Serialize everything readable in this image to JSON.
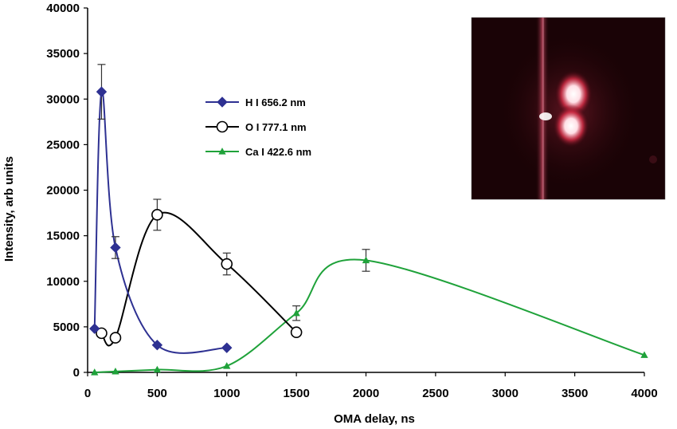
{
  "chart_data": {
    "type": "line",
    "xlabel": "OMA delay, ns",
    "ylabel": "Intensity, arb units",
    "xlim": [
      0,
      4000
    ],
    "ylim": [
      0,
      40000
    ],
    "xticks": [
      "0",
      "500",
      "1000",
      "1500",
      "2000",
      "2500",
      "3000",
      "3500",
      "4000"
    ],
    "yticks": [
      "0",
      "5000",
      "10000",
      "15000",
      "20000",
      "25000",
      "30000",
      "35000",
      "40000"
    ],
    "legend_position": "center-left",
    "series": [
      {
        "name": "H I 656.2 nm",
        "color": "#2e3192",
        "marker": "diamond-filled",
        "x": [
          50,
          100,
          200,
          500,
          1000
        ],
        "y": [
          4800,
          30800,
          13700,
          3000,
          2700
        ],
        "err": [
          0,
          3000,
          1200,
          0,
          0
        ]
      },
      {
        "name": "O I 777.1 nm",
        "color": "#000000",
        "marker": "circle-open",
        "x": [
          100,
          200,
          500,
          1000,
          1500
        ],
        "y": [
          4300,
          3800,
          17300,
          11900,
          4400
        ],
        "err": [
          0,
          0,
          1700,
          1200,
          0
        ]
      },
      {
        "name": "Ca I 422.6 nm",
        "color": "#1fa23a",
        "marker": "triangle-filled",
        "x": [
          50,
          200,
          500,
          1000,
          1500,
          2000,
          4000
        ],
        "y": [
          0,
          100,
          300,
          700,
          6500,
          12300,
          1900
        ],
        "err": [
          0,
          0,
          0,
          0,
          800,
          1200,
          0
        ]
      }
    ],
    "inset": "photograph-of-plasma-plume"
  }
}
